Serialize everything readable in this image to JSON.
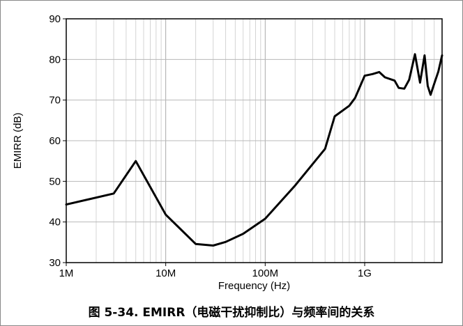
{
  "caption": "图 5-34. EMIRR（电磁干扰抑制比）与频率间的关系",
  "chart_data": {
    "type": "line",
    "title": "",
    "xlabel": "Frequency (Hz)",
    "ylabel": "EMIRR (dB)",
    "x_scale": "log",
    "xlim": [
      1000000,
      6000000000
    ],
    "ylim": [
      30,
      90
    ],
    "grid": true,
    "x_ticks": [
      {
        "value": 1000000,
        "label": "1M"
      },
      {
        "value": 10000000,
        "label": "10M"
      },
      {
        "value": 100000000,
        "label": "100M"
      },
      {
        "value": 1000000000,
        "label": "1G"
      }
    ],
    "y_ticks": [
      30,
      40,
      50,
      60,
      70,
      80,
      90
    ],
    "line_color": "#000000",
    "series": [
      {
        "x": [
          1000000,
          3000000,
          5000000,
          10000000,
          20000000,
          30000000,
          40000000,
          60000000,
          100000000,
          200000000,
          400000000,
          500000000,
          700000000,
          800000000,
          1000000000,
          1200000000,
          1400000000,
          1600000000,
          2000000000,
          2200000000,
          2500000000,
          2800000000,
          3200000000,
          3600000000,
          4000000000,
          4300000000,
          4600000000,
          5000000000,
          5500000000,
          6000000000
        ],
        "y": [
          44.3,
          47,
          55,
          41.8,
          34.6,
          34.2,
          35.1,
          37.1,
          40.8,
          49,
          58,
          66,
          68.6,
          70.5,
          76,
          76.4,
          76.9,
          75.6,
          74.8,
          73,
          72.8,
          75,
          81.3,
          74.3,
          81,
          73.5,
          71.3,
          74,
          77,
          81
        ]
      }
    ]
  }
}
